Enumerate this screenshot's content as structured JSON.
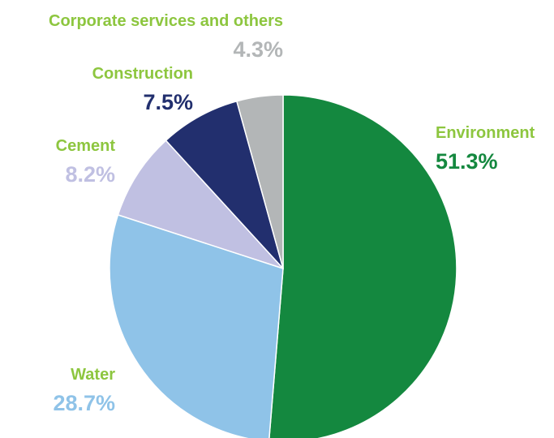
{
  "chart_data": {
    "type": "pie",
    "slices": [
      {
        "label": "Environment",
        "value": 51.3,
        "value_label": "51.3%",
        "color": "#14883f"
      },
      {
        "label": "Water",
        "value": 28.7,
        "value_label": "28.7%",
        "color": "#8fc3e8"
      },
      {
        "label": "Cement",
        "value": 8.2,
        "value_label": "8.2%",
        "color": "#c0c0e2"
      },
      {
        "label": "Construction",
        "value": 7.5,
        "value_label": "7.5%",
        "color": "#222f6e"
      },
      {
        "label": "Corporate services and others",
        "value": 4.3,
        "value_label": "4.3%",
        "color": "#b3b6b7"
      }
    ],
    "start_angle_deg": 0,
    "direction": "clockwise",
    "label_color": "#8dc63f"
  }
}
